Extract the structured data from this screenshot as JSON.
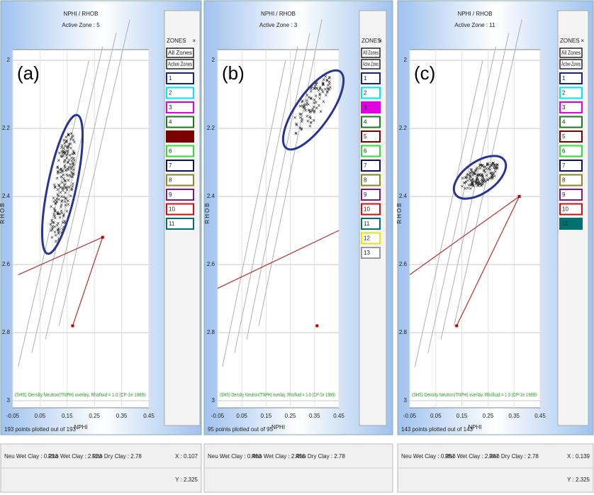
{
  "zone_colors": [
    "#1a237e",
    "#00e5ee",
    "#e000e0",
    "#1b7a1b",
    "#7b0000",
    "#33dd33",
    "#101060",
    "#8a8a20",
    "#7a1a8a",
    "#d01010",
    "#007070",
    "#e8e800",
    "#999999"
  ],
  "panels": [
    {
      "label": "(a)",
      "title": "NPHI / RHOB",
      "active_zone": "Active Zone : 5",
      "y_axis_label": "RHOB",
      "x_axis_label": "NPHI",
      "yticks": [
        "2",
        "2.2",
        "2.4",
        "2.6",
        "2.8",
        "3"
      ],
      "xticks": [
        "-0.05",
        "0.05",
        "0.15",
        "0.25",
        "0.35",
        "0.45"
      ],
      "overlay_note": "(SHS) Density Neutron(TNPH) overlay, Rhofluid = 1.0 (CP-1e 1989)",
      "zones_header": "ZONES",
      "zones_close": "×",
      "zone_buttons": [
        "All Zones",
        "Active Zones"
      ],
      "zones": [
        "1",
        "2",
        "3",
        "4",
        "5",
        "6",
        "7",
        "8",
        "9",
        "10",
        "11"
      ],
      "points_note": "193 points plotted out of 193",
      "footer": [
        "Neu Wet Clay : 0.213",
        "Rho Wet Clay : 2.523",
        "Rho Dry Clay : 2.78"
      ],
      "cursor_x": "X : 0.107",
      "cursor_y": "Y : 2.325"
    },
    {
      "label": "(b)",
      "title": "NPHI / RHOB",
      "active_zone": "Active Zone : 3",
      "y_axis_label": "RHOB",
      "x_axis_label": "NPHI",
      "yticks": [
        "2",
        "2.2",
        "2.4",
        "2.6",
        "2.8",
        "3"
      ],
      "xticks": [
        "-0.05",
        "0.05",
        "0.15",
        "0.25",
        "0.35",
        "0.45"
      ],
      "overlay_note": "(SHS) Density Neutron(TNPH) overlay, Rhofluid = 1.0 (CP-1e 1989)",
      "zones_header": "ZONES",
      "zones_close": "×",
      "zone_buttons": [
        "All Zones",
        "Active Zones"
      ],
      "zones": [
        "1",
        "2",
        "3",
        "4",
        "5",
        "6",
        "7",
        "8",
        "9",
        "10",
        "11",
        "12",
        "13"
      ],
      "points_note": "95 points plotted out of 95",
      "footer": [
        "Neu Wet Clay : 0.463",
        "Rho Wet Clay : 2.455",
        "Rho Dry Clay : 2.78"
      ]
    },
    {
      "label": "(c)",
      "title": "NPHI / RHOB",
      "active_zone": "Active Zone : 11",
      "y_axis_label": "RHOB",
      "x_axis_label": "NPHI",
      "yticks": [
        "2",
        "2.2",
        "2.4",
        "2.6",
        "2.8",
        "3"
      ],
      "xticks": [
        "-0.05",
        "0.05",
        "0.15",
        "0.25",
        "0.35",
        "0.45"
      ],
      "overlay_note": "(SHS) Density Neutron(TNPH) overlay, Rhofluid = 1.0 (CP-1e 1989)",
      "zones_header": "ZONES",
      "zones_close": "×",
      "zone_buttons": [
        "All Zones",
        "Active Zones"
      ],
      "zones": [
        "1",
        "2",
        "3",
        "4",
        "5",
        "6",
        "7",
        "8",
        "9",
        "10",
        "11"
      ],
      "points_note": "143 points plotted out of 143",
      "footer": [
        "Neu Wet Clay : 0.357",
        "Rho Wet Clay : 2.347",
        "Rho Dry Clay : 2.78"
      ],
      "cursor_x": "X : 0.139",
      "cursor_y": "Y : 2.325"
    }
  ]
}
